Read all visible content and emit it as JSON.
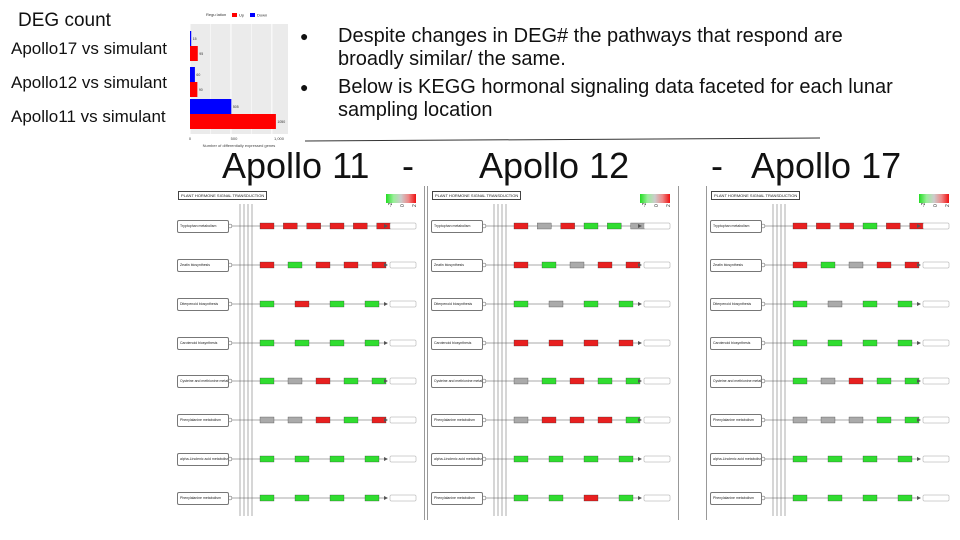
{
  "deg": {
    "title": "DEG count",
    "comparisons": [
      "Apollo17 vs simulant",
      "Apollo12 vs simulant",
      "Apollo11 vs simulant"
    ],
    "chart_data": {
      "type": "bar",
      "orientation": "horizontal",
      "categories": [
        "Apollo17 vs simulant",
        "Apollo12 vs simulant",
        "Apollo11 vs simulant"
      ],
      "series": [
        {
          "name": "Up",
          "color": "#ff0000",
          "values": [
            95,
            90,
            1050
          ]
        },
        {
          "name": "Down",
          "color": "#0000ff",
          "values": [
            15,
            60,
            505
          ]
        }
      ],
      "legend_title": "Regu lation",
      "xlabel": "Number of differentially expressed genes",
      "xticks": [
        "0",
        "500",
        "1,000"
      ],
      "xlim": [
        0,
        1100
      ],
      "grid": true,
      "legend_placement": "top"
    }
  },
  "bullets": [
    "Despite changes in DEG# the pathways that respond are broadly similar/ the same.",
    "Below is KEGG hormonal signaling data faceted for each lunar sampling location"
  ],
  "locations": [
    "Apollo 11",
    "Apollo 12",
    "Apollo 17"
  ],
  "separator": "-",
  "kegg": {
    "title": "PLANT HORMONE SIGNAL TRANSDUCTION",
    "legend_ticks": [
      "-2",
      "0",
      "2"
    ],
    "pathways": [
      "Tryptophan metabolism",
      "Zeatin biosynthesis",
      "Diterpenoid biosynthesis",
      "Carotenoid biosynthesis",
      "Cysteine and methionine metabolism",
      "Phenylalanine metabolism",
      "alpha-Linolenic acid metabolism",
      "Phenylalanine metabolism"
    ],
    "colors": {
      "up": "#e82020",
      "down": "#30dd30",
      "neutral": "#aaaaaa"
    },
    "panels": {
      "apollo11": [
        [
          "up",
          "up",
          "up",
          "up",
          "up",
          "up"
        ],
        [
          "up",
          "down",
          "up",
          "up",
          "up"
        ],
        [
          "down",
          "up",
          "down",
          "down"
        ],
        [
          "down",
          "down",
          "down",
          "down"
        ],
        [
          "down",
          "neutral",
          "up",
          "down",
          "down"
        ],
        [
          "neutral",
          "neutral",
          "up",
          "down",
          "up"
        ],
        [
          "down",
          "down",
          "down",
          "down"
        ],
        [
          "down",
          "down",
          "down",
          "down"
        ]
      ],
      "apollo12": [
        [
          "up",
          "neutral",
          "up",
          "down",
          "down",
          "neutral"
        ],
        [
          "up",
          "down",
          "neutral",
          "up",
          "up"
        ],
        [
          "down",
          "neutral",
          "down",
          "down"
        ],
        [
          "up",
          "up",
          "up",
          "up"
        ],
        [
          "neutral",
          "down",
          "up",
          "down",
          "down"
        ],
        [
          "neutral",
          "up",
          "up",
          "up",
          "down"
        ],
        [
          "down",
          "down",
          "down",
          "down"
        ],
        [
          "down",
          "down",
          "up",
          "down"
        ]
      ],
      "apollo17": [
        [
          "up",
          "up",
          "up",
          "down",
          "up",
          "up"
        ],
        [
          "up",
          "down",
          "neutral",
          "up",
          "up"
        ],
        [
          "down",
          "neutral",
          "down",
          "down"
        ],
        [
          "down",
          "down",
          "down",
          "down"
        ],
        [
          "down",
          "neutral",
          "up",
          "down",
          "down"
        ],
        [
          "neutral",
          "neutral",
          "neutral",
          "down",
          "down"
        ],
        [
          "down",
          "down",
          "down",
          "down"
        ],
        [
          "down",
          "down",
          "down",
          "down"
        ]
      ]
    }
  }
}
